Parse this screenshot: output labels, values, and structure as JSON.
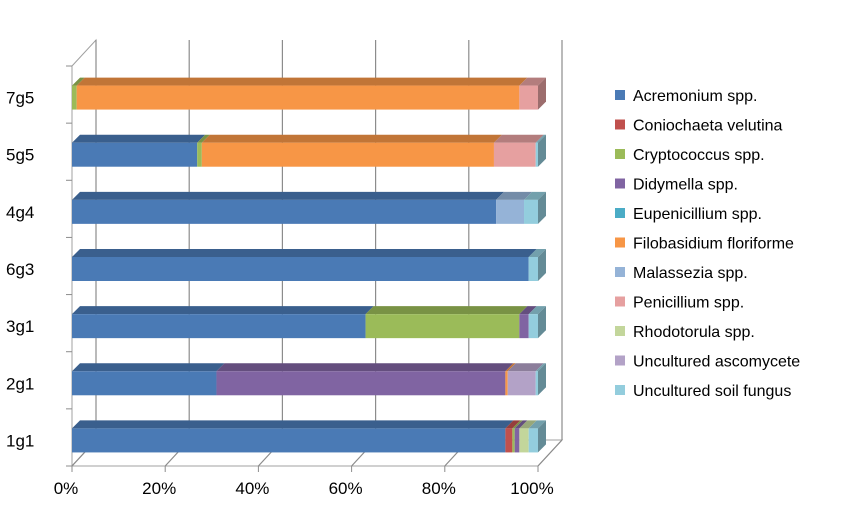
{
  "chart_data": {
    "type": "bar",
    "orientation": "horizontal",
    "stacked": "percent",
    "categories": [
      "1g1",
      "2g1",
      "3g1",
      "6g3",
      "4g4",
      "5g5",
      "7g5"
    ],
    "xlim": [
      0,
      100
    ],
    "x_ticks": [
      "0%",
      "20%",
      "40%",
      "60%",
      "80%",
      "100%"
    ],
    "grid": true,
    "legend_position": "right",
    "series": [
      {
        "name": "Acremonium spp.",
        "color": "#4a7ab5",
        "values": [
          93,
          31,
          63,
          98,
          91,
          27,
          0
        ]
      },
      {
        "name": "Coniochaeta velutina",
        "color": "#c0504d",
        "values": [
          1.5,
          0,
          0,
          0,
          0,
          0,
          0
        ]
      },
      {
        "name": "Cryptococcus spp.",
        "color": "#9bbb59",
        "values": [
          0.5,
          0,
          33,
          0,
          0,
          1,
          1
        ]
      },
      {
        "name": "Didymella spp.",
        "color": "#8064a2",
        "values": [
          1,
          62,
          2,
          0,
          0,
          0,
          0
        ]
      },
      {
        "name": "Eupenicillium spp.",
        "color": "#4bacc6",
        "values": [
          0,
          0,
          0,
          0,
          0,
          0,
          0
        ]
      },
      {
        "name": "Filobasidium floriforme",
        "color": "#f79646",
        "values": [
          0,
          0.5,
          0,
          0,
          0,
          63,
          95
        ]
      },
      {
        "name": "Malassezia spp.",
        "color": "#95b3d7",
        "values": [
          0,
          0,
          0,
          0,
          6,
          0,
          0
        ]
      },
      {
        "name": "Penicillium spp.",
        "color": "#e6a0a0",
        "values": [
          0,
          0,
          0,
          0,
          0,
          9,
          4
        ]
      },
      {
        "name": "Rhodotorula spp.",
        "color": "#c3d69b",
        "values": [
          2,
          0,
          0,
          0,
          0,
          0,
          0
        ]
      },
      {
        "name": "Uncultured ascomycete",
        "color": "#b3a2c7",
        "values": [
          0,
          6,
          0,
          0,
          0,
          0,
          0
        ]
      },
      {
        "name": "Uncultured soil fungus",
        "color": "#93cddd",
        "values": [
          2,
          0.5,
          2,
          2,
          3,
          0.5,
          0
        ]
      }
    ]
  }
}
